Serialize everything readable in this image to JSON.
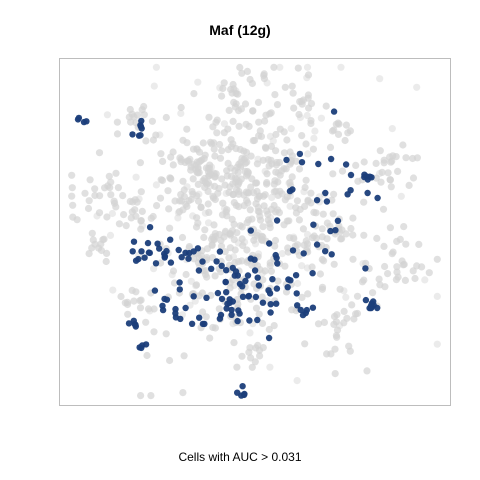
{
  "chart_data": {
    "type": "scatter",
    "title": "Maf (12g)",
    "caption": "Cells with AUC > 0.031",
    "axes_visible": false,
    "grid": false,
    "background_color": "#d3d3d3",
    "highlight_color": "#1b3e7a",
    "clusters": [
      {
        "x": 0.5,
        "y": 0.5,
        "sd": 0.13,
        "n": 260,
        "shade": "light"
      },
      {
        "x": 0.46,
        "y": 0.34,
        "sd": 0.13,
        "n": 180,
        "shade": "light"
      },
      {
        "x": 0.08,
        "y": 0.39,
        "sd": 0.05,
        "n": 26,
        "shade": "light"
      },
      {
        "x": 0.35,
        "y": 0.31,
        "sd": 0.03,
        "n": 26,
        "shade": "light"
      },
      {
        "x": 0.47,
        "y": 0.09,
        "sd": 0.045,
        "n": 26,
        "shade": "light"
      },
      {
        "x": 0.62,
        "y": 0.09,
        "sd": 0.04,
        "n": 18,
        "shade": "light"
      },
      {
        "x": 0.87,
        "y": 0.31,
        "sd": 0.045,
        "n": 26,
        "shade": "light"
      },
      {
        "x": 0.89,
        "y": 0.59,
        "sd": 0.05,
        "n": 30,
        "shade": "light"
      },
      {
        "x": 0.74,
        "y": 0.74,
        "sd": 0.03,
        "n": 14,
        "shade": "light"
      },
      {
        "x": 0.74,
        "y": 0.19,
        "sd": 0.02,
        "n": 10,
        "shade": "light"
      },
      {
        "x": 0.19,
        "y": 0.16,
        "sd": 0.025,
        "n": 12,
        "shade": "light"
      },
      {
        "x": 0.36,
        "y": 0.58,
        "sd": 0.022,
        "n": 12,
        "shade": "light"
      },
      {
        "x": 0.47,
        "y": 0.31,
        "sd": 0.02,
        "n": 10,
        "shade": "light"
      },
      {
        "x": 0.73,
        "y": 0.49,
        "sd": 0.022,
        "n": 12,
        "shade": "light"
      },
      {
        "x": 0.18,
        "y": 0.7,
        "sd": 0.025,
        "n": 12,
        "shade": "light"
      },
      {
        "x": 0.17,
        "y": 0.45,
        "sd": 0.025,
        "n": 12,
        "shade": "light"
      },
      {
        "x": 0.48,
        "y": 0.87,
        "sd": 0.025,
        "n": 12,
        "shade": "light"
      },
      {
        "x": 0.73,
        "y": 0.86,
        "sd": 0.03,
        "n": 10,
        "shade": "light"
      },
      {
        "x": 0.07,
        "y": 0.53,
        "sd": 0.025,
        "n": 12,
        "shade": "light"
      },
      {
        "x": 0.35,
        "y": 0.69,
        "sd": 0.02,
        "n": 8,
        "shade": "light"
      },
      {
        "x": 0.46,
        "y": 0.73,
        "sd": 0.03,
        "n": 10,
        "shade": "light"
      },
      {
        "x": 0.55,
        "y": 0.31,
        "sd": 0.02,
        "n": 6,
        "shade": "light"
      },
      {
        "x": 0.26,
        "y": 0.87,
        "sd": 0.08,
        "n": 14,
        "shade": "light"
      },
      {
        "x": 0.48,
        "y": 0.42,
        "sd": 0.22,
        "n": 110,
        "shade": "pale"
      },
      {
        "x": 0.04,
        "y": 0.17,
        "sd": 0.01,
        "n": 4,
        "shade": "dark"
      },
      {
        "x": 0.19,
        "y": 0.19,
        "sd": 0.012,
        "n": 7,
        "shade": "dark"
      },
      {
        "x": 0.2,
        "y": 0.84,
        "sd": 0.007,
        "n": 4,
        "shade": "dark"
      },
      {
        "x": 0.18,
        "y": 0.77,
        "sd": 0.008,
        "n": 5,
        "shade": "dark"
      },
      {
        "x": 0.3,
        "y": 0.56,
        "sd": 0.03,
        "n": 12,
        "shade": "dark"
      },
      {
        "x": 0.2,
        "y": 0.55,
        "sd": 0.03,
        "n": 14,
        "shade": "dark"
      },
      {
        "x": 0.44,
        "y": 0.7,
        "sd": 0.07,
        "n": 65,
        "shade": "dark"
      },
      {
        "x": 0.27,
        "y": 0.7,
        "sd": 0.03,
        "n": 8,
        "shade": "dark"
      },
      {
        "x": 0.6,
        "y": 0.65,
        "sd": 0.015,
        "n": 5,
        "shade": "dark"
      },
      {
        "x": 0.64,
        "y": 0.74,
        "sd": 0.01,
        "n": 5,
        "shade": "dark"
      },
      {
        "x": 0.81,
        "y": 0.72,
        "sd": 0.01,
        "n": 9,
        "shade": "dark"
      },
      {
        "x": 0.8,
        "y": 0.34,
        "sd": 0.008,
        "n": 6,
        "shade": "dark"
      },
      {
        "x": 0.7,
        "y": 0.35,
        "sd": 0.08,
        "n": 22,
        "shade": "dark"
      },
      {
        "x": 0.6,
        "y": 0.55,
        "sd": 0.08,
        "n": 10,
        "shade": "dark"
      },
      {
        "x": 0.47,
        "y": 0.98,
        "sd": 0.008,
        "n": 5,
        "shade": "dark"
      }
    ]
  }
}
